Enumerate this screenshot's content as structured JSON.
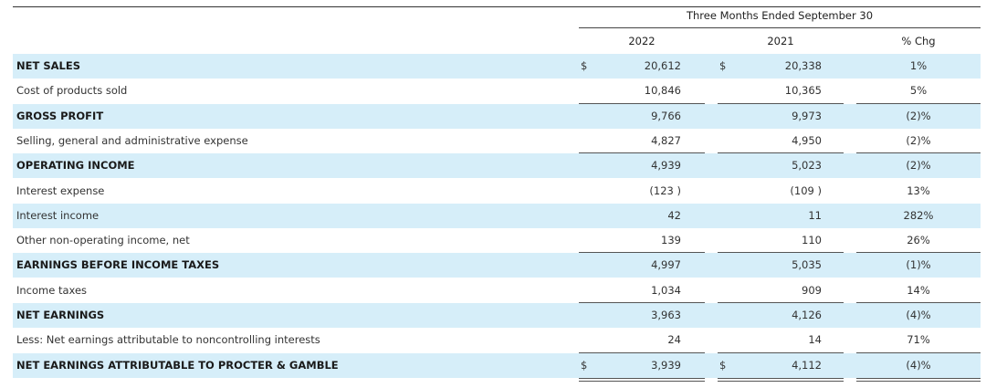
{
  "header": {
    "period": "Three Months Ended September 30",
    "col_2022": "2022",
    "col_2021": "2021",
    "col_chg": "% Chg"
  },
  "rows": [
    {
      "label": "NET SALES",
      "v2022": "20,612",
      "v2021": "20,338",
      "chg": "1%",
      "bold": true,
      "shade": true,
      "dollar": true
    },
    {
      "label": "Cost of products sold",
      "v2022": "10,846",
      "v2021": "10,365",
      "chg": "5%",
      "bold": false,
      "shade": false,
      "dollar": false
    },
    {
      "label": "GROSS PROFIT",
      "v2022": "9,766",
      "v2021": "9,973",
      "chg": "(2)%",
      "bold": true,
      "shade": true,
      "dollar": false
    },
    {
      "label": "Selling, general and administrative expense",
      "v2022": "4,827",
      "v2021": "4,950",
      "chg": "(2)%",
      "bold": false,
      "shade": false,
      "dollar": false
    },
    {
      "label": "OPERATING INCOME",
      "v2022": "4,939",
      "v2021": "5,023",
      "chg": "(2)%",
      "bold": true,
      "shade": true,
      "dollar": false
    },
    {
      "label": "Interest expense",
      "v2022": "(123 )",
      "v2021": "(109 )",
      "chg": "13%",
      "bold": false,
      "shade": false,
      "dollar": false
    },
    {
      "label": "Interest income",
      "v2022": "42",
      "v2021": "11",
      "chg": "282%",
      "bold": false,
      "shade": true,
      "dollar": false
    },
    {
      "label": "Other non-operating income, net",
      "v2022": "139",
      "v2021": "110",
      "chg": "26%",
      "bold": false,
      "shade": false,
      "dollar": false
    },
    {
      "label": "EARNINGS BEFORE INCOME TAXES",
      "v2022": "4,997",
      "v2021": "5,035",
      "chg": "(1)%",
      "bold": true,
      "shade": true,
      "dollar": false
    },
    {
      "label": "Income taxes",
      "v2022": "1,034",
      "v2021": "909",
      "chg": "14%",
      "bold": false,
      "shade": false,
      "dollar": false
    },
    {
      "label": "NET EARNINGS",
      "v2022": "3,963",
      "v2021": "4,126",
      "chg": "(4)%",
      "bold": true,
      "shade": true,
      "dollar": false
    },
    {
      "label": "Less: Net earnings attributable to noncontrolling interests",
      "v2022": "24",
      "v2021": "14",
      "chg": "71%",
      "bold": false,
      "shade": false,
      "dollar": false
    },
    {
      "label": "NET EARNINGS ATTRIBUTABLE TO PROCTER & GAMBLE",
      "v2022": "3,939",
      "v2021": "4,112",
      "chg": "(4)%",
      "bold": true,
      "shade": true,
      "dollar": true
    }
  ],
  "currency_symbol": "$",
  "colors": {
    "shade": "#d6eef9",
    "text": "#333333"
  }
}
